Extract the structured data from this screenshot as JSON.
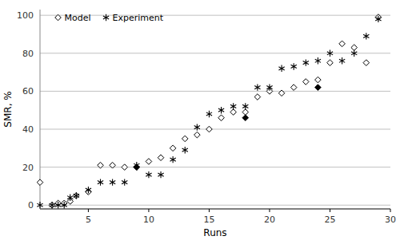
{
  "chart_data": {
    "type": "scatter",
    "xlabel": "Runs",
    "ylabel": "SMR, %",
    "xlim": [
      1,
      30
    ],
    "ylim": [
      -2,
      103
    ],
    "xticks": [
      5,
      10,
      15,
      20,
      25,
      30
    ],
    "yticks": [
      0,
      20,
      40,
      60,
      80,
      100
    ],
    "grid": "y",
    "legend": "upper left",
    "series": [
      {
        "name": "Model",
        "color": "#000000",
        "marker": "open-diamond",
        "x": [
          1,
          2,
          2.5,
          3,
          3.5,
          4,
          5,
          6,
          7,
          8,
          9,
          10,
          11,
          12,
          13,
          14,
          15,
          16,
          17,
          18,
          19,
          20,
          21,
          22,
          23,
          24,
          25,
          26,
          27,
          28,
          29
        ],
        "values": [
          12,
          0,
          1,
          1,
          2,
          5,
          7,
          21,
          21,
          20,
          20,
          23,
          25,
          30,
          35,
          37,
          40,
          46,
          49,
          49,
          57,
          60,
          59,
          62,
          65,
          66,
          75,
          85,
          83,
          75,
          99
        ]
      },
      {
        "color": "#000000",
        "marker": "filled-diamond",
        "x": [
          9,
          18,
          24
        ],
        "values": [
          20,
          46,
          62
        ]
      },
      {
        "name": "Experiment",
        "color": "#000000",
        "marker": "asterisk",
        "x": [
          1,
          2,
          2.5,
          3,
          3.5,
          4,
          5,
          6,
          7,
          8,
          9,
          10,
          11,
          12,
          13,
          14,
          15,
          16,
          17,
          18,
          19,
          20,
          21,
          22,
          23,
          24,
          25,
          26,
          27,
          28,
          29
        ],
        "values": [
          0,
          0,
          0,
          0,
          4,
          5,
          8,
          12,
          12,
          12,
          21,
          16,
          16,
          24,
          29,
          41,
          48,
          50,
          52,
          52,
          62,
          62,
          72,
          73,
          75,
          76,
          80,
          76,
          80,
          89,
          98
        ]
      }
    ]
  }
}
